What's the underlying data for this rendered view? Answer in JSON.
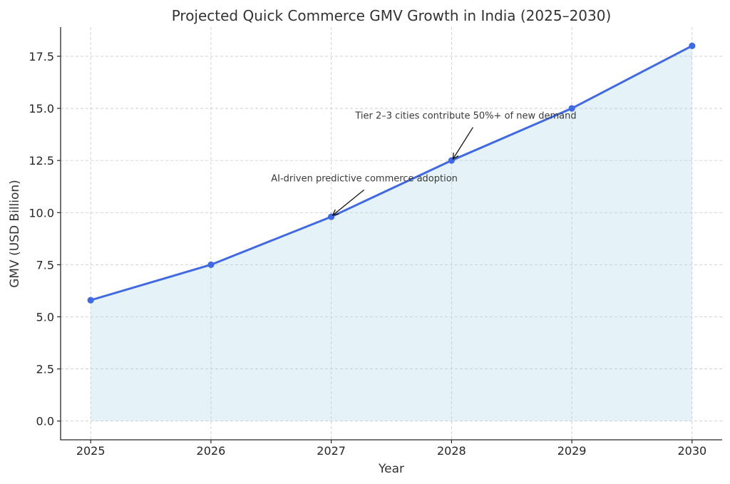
{
  "chart_data": {
    "type": "area",
    "title": "Projected Quick Commerce GMV Growth in India (2025–2030)",
    "xlabel": "Year",
    "ylabel": "GMV (USD Billion)",
    "x": [
      2025,
      2026,
      2027,
      2028,
      2029,
      2030
    ],
    "x_tick_labels": [
      "2025",
      "2026",
      "2027",
      "2028",
      "2029",
      "2030"
    ],
    "series": [
      {
        "name": "GMV",
        "values": [
          5.8,
          7.5,
          9.8,
          12.5,
          15.0,
          18.0
        ],
        "line_color": "#4169e1",
        "fill_color": "#add8e6"
      }
    ],
    "y_ticks": [
      0.0,
      2.5,
      5.0,
      7.5,
      10.0,
      12.5,
      15.0,
      17.5
    ],
    "y_tick_labels": [
      "0.0",
      "2.5",
      "5.0",
      "7.5",
      "10.0",
      "12.5",
      "15.0",
      "17.5"
    ],
    "xlim": [
      2024.75,
      2030.25
    ],
    "ylim": [
      -0.9,
      18.9
    ],
    "grid": true,
    "annotations": [
      {
        "text": "AI-driven predictive commerce adoption",
        "x": 2027,
        "y": 9.8,
        "text_x": 2026.5,
        "text_y": 11.5
      },
      {
        "text": "Tier 2–3 cities contribute 50%+ of new demand",
        "x": 2028,
        "y": 12.5,
        "text_x": 2027.2,
        "text_y": 14.5
      }
    ]
  }
}
